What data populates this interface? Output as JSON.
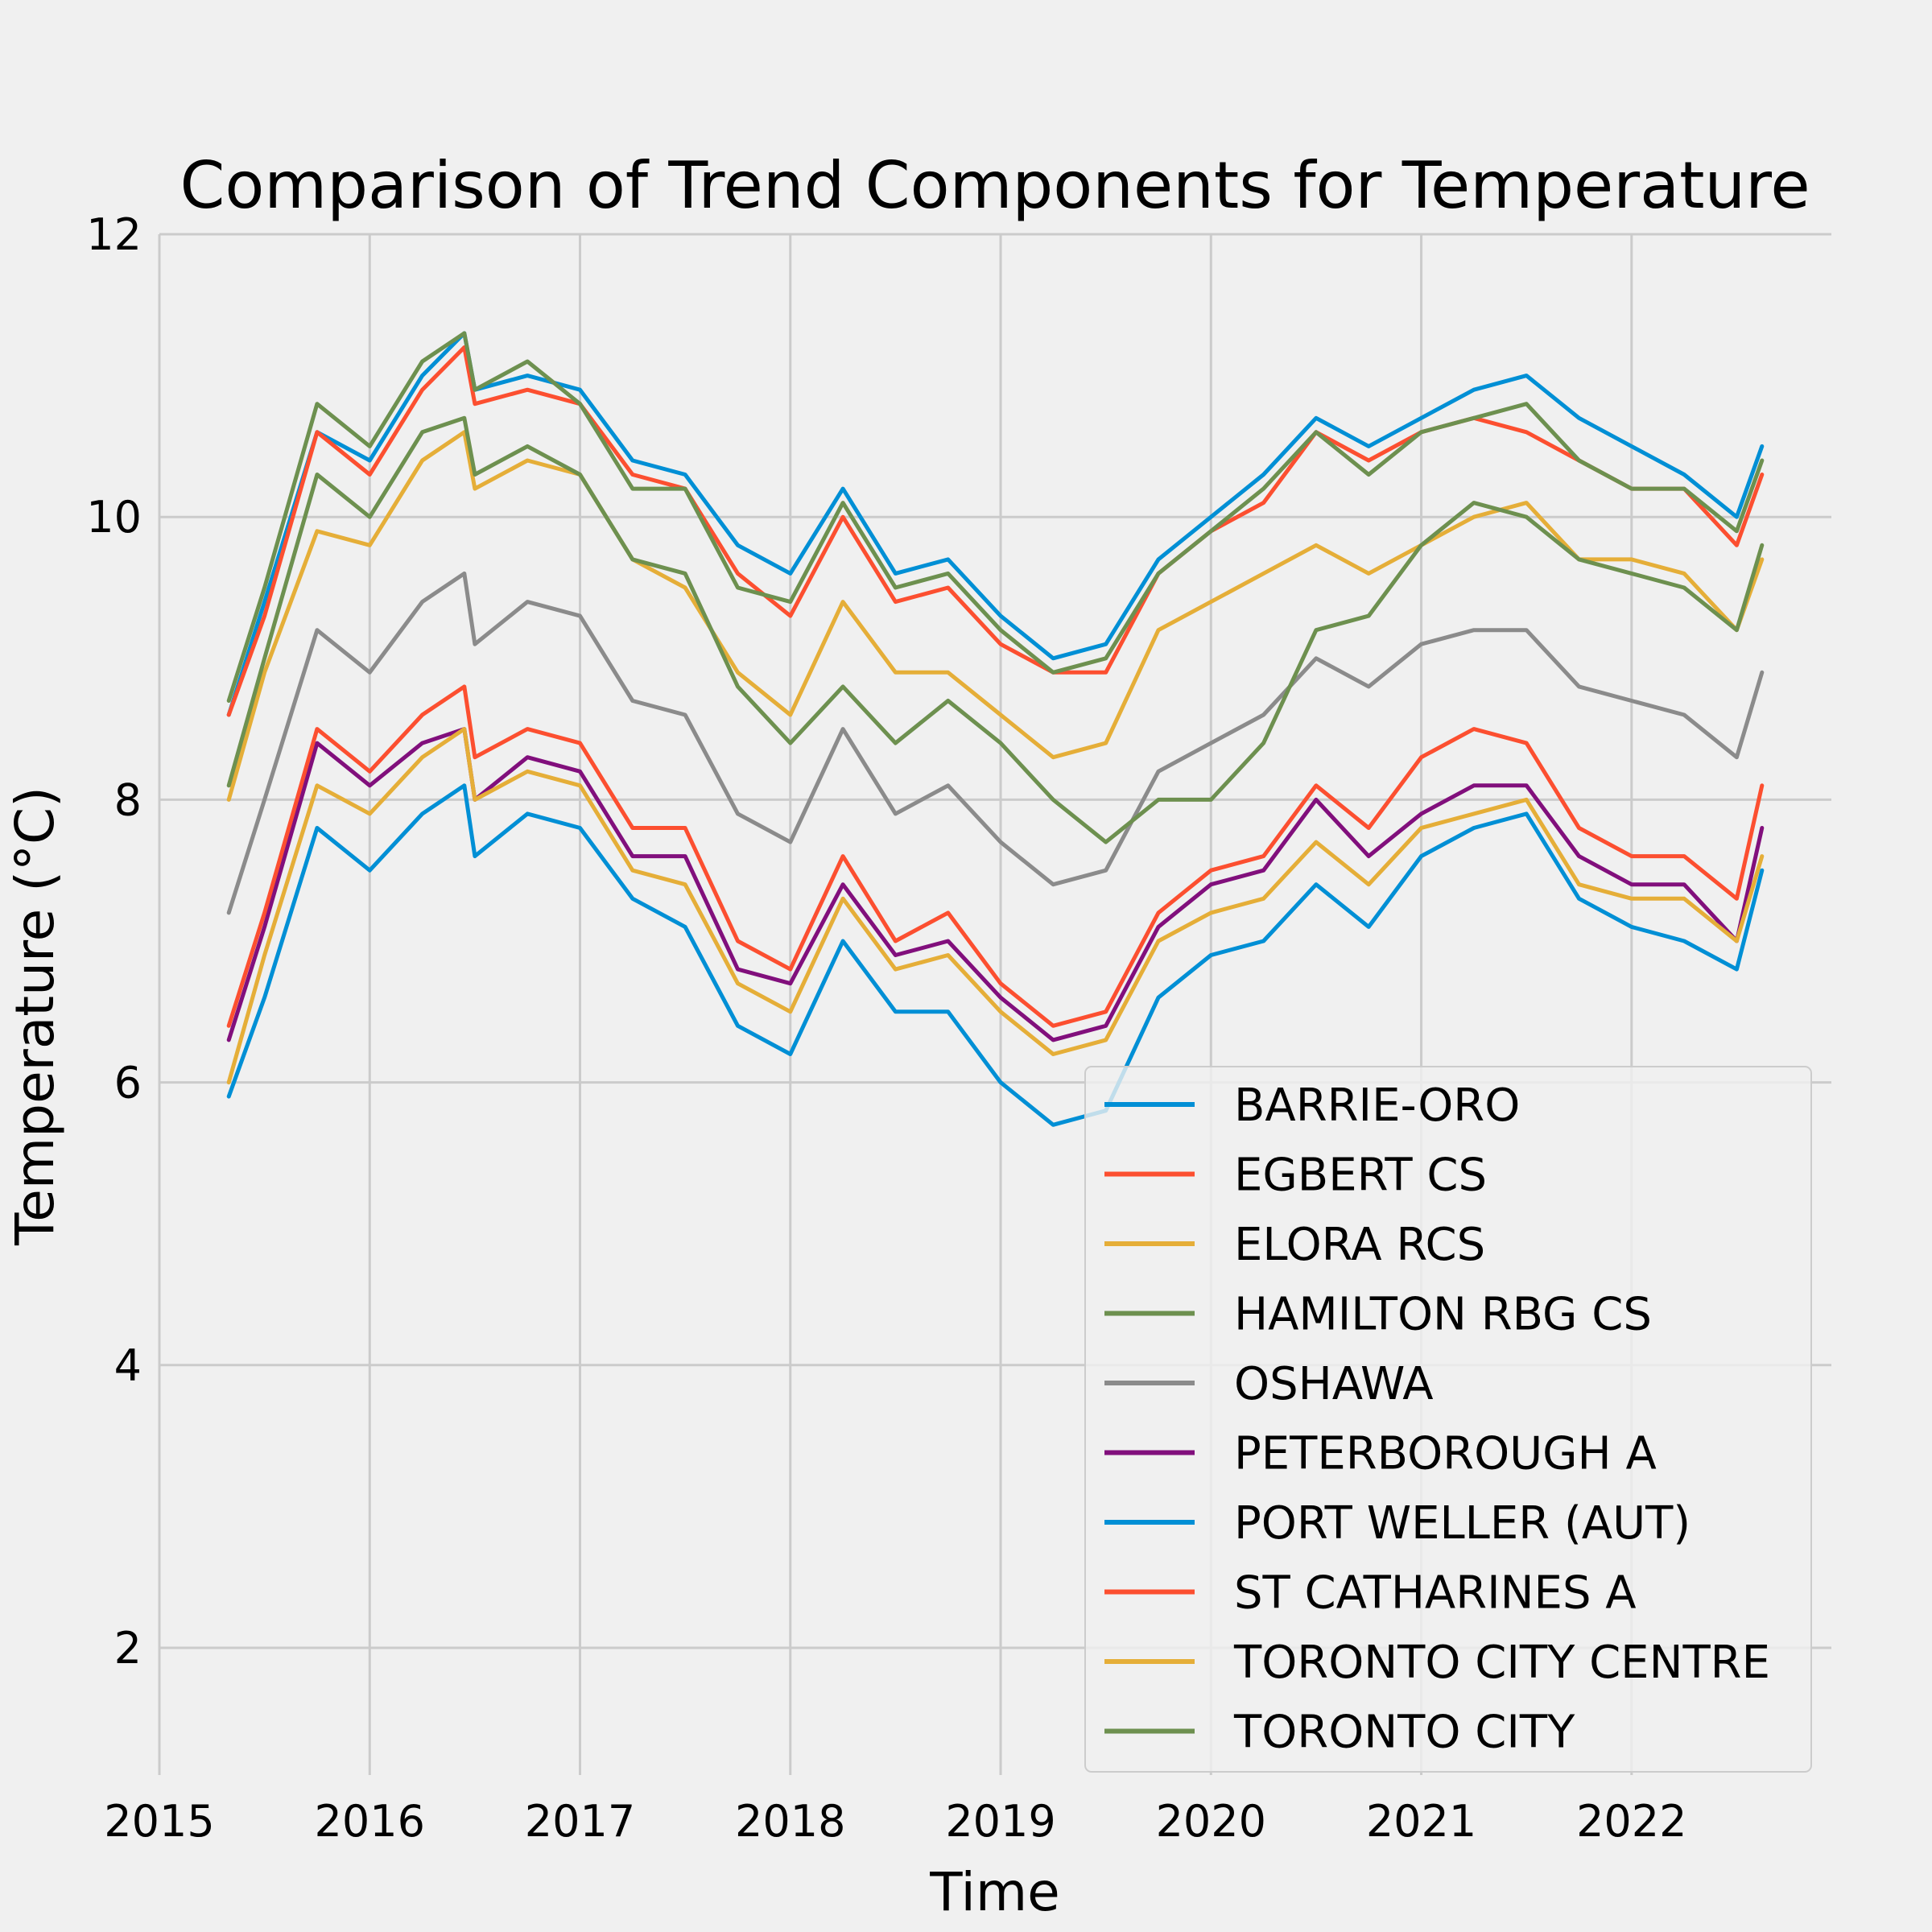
{
  "chart_data": {
    "type": "line",
    "title": "Comparison of Trend Components for Temperature",
    "xlabel": "Time",
    "ylabel": "Temperature (°C)",
    "xlim": [
      2015.0,
      2022.95
    ],
    "ylim": [
      1.1,
      12.0
    ],
    "xticks": [
      2015,
      2016,
      2017,
      2018,
      2019,
      2020,
      2021,
      2022
    ],
    "xtick_labels": [
      "2015",
      "2016",
      "2017",
      "2018",
      "2019",
      "2020",
      "2021",
      "2022"
    ],
    "yticks": [
      2,
      4,
      6,
      8,
      10,
      12
    ],
    "ytick_labels": [
      "2",
      "4",
      "6",
      "8",
      "10",
      "12"
    ],
    "grid": true,
    "legend_position": "bottom-right",
    "x": [
      2015.33,
      2015.5,
      2015.75,
      2016.0,
      2016.25,
      2016.45,
      2016.5,
      2016.75,
      2017.0,
      2017.25,
      2017.5,
      2017.75,
      2018.0,
      2018.25,
      2018.5,
      2018.75,
      2019.0,
      2019.25,
      2019.5,
      2019.75,
      2020.0,
      2020.25,
      2020.5,
      2020.75,
      2021.0,
      2021.25,
      2021.5,
      2021.75,
      2022.0,
      2022.25,
      2022.5,
      2022.62
    ],
    "series": [
      {
        "name": "BARRIE-ORO",
        "color": "#008fd5",
        "values": [
          8.6,
          9.4,
          10.6,
          10.4,
          11.0,
          11.3,
          10.9,
          11.0,
          10.9,
          10.4,
          10.3,
          9.8,
          9.6,
          10.2,
          9.6,
          9.7,
          9.3,
          9.0,
          9.1,
          9.7,
          10.0,
          10.3,
          10.7,
          10.5,
          10.7,
          10.9,
          11.0,
          10.7,
          10.5,
          10.3,
          10.0,
          10.5
        ]
      },
      {
        "name": "EGBERT CS",
        "color": "#fc4f30",
        "values": [
          8.6,
          9.3,
          10.6,
          10.3,
          10.9,
          11.2,
          10.8,
          10.9,
          10.8,
          10.3,
          10.2,
          9.6,
          9.3,
          10.0,
          9.4,
          9.5,
          9.1,
          8.9,
          8.9,
          9.6,
          9.9,
          10.1,
          10.6,
          10.4,
          10.6,
          10.7,
          10.6,
          10.4,
          10.2,
          10.2,
          9.8,
          10.3
        ]
      },
      {
        "name": "ELORA RCS",
        "color": "#e5ae38",
        "values": [
          8.0,
          8.9,
          9.9,
          9.8,
          10.4,
          10.6,
          10.2,
          10.4,
          10.3,
          9.7,
          9.5,
          8.9,
          8.6,
          9.4,
          8.9,
          8.9,
          8.6,
          8.3,
          8.4,
          9.2,
          9.4,
          9.6,
          9.8,
          9.6,
          9.8,
          10.0,
          10.1,
          9.7,
          9.7,
          9.6,
          9.2,
          9.7
        ]
      },
      {
        "name": "HAMILTON RBG CS",
        "color": "#6d904f",
        "values": [
          8.7,
          9.5,
          10.8,
          10.5,
          11.1,
          11.3,
          10.9,
          11.1,
          10.8,
          10.2,
          10.2,
          9.5,
          9.4,
          10.1,
          9.5,
          9.6,
          9.2,
          8.9,
          9.0,
          9.6,
          9.9,
          10.2,
          10.6,
          10.3,
          10.6,
          10.7,
          10.8,
          10.4,
          10.2,
          10.2,
          9.9,
          10.4
        ]
      },
      {
        "name": "OSHAWA",
        "color": "#8b8b8b",
        "values": [
          7.2,
          8.0,
          9.2,
          8.9,
          9.4,
          9.6,
          9.1,
          9.4,
          9.3,
          8.7,
          8.6,
          7.9,
          7.7,
          8.5,
          7.9,
          8.1,
          7.7,
          7.4,
          7.5,
          8.2,
          8.4,
          8.6,
          9.0,
          8.8,
          9.1,
          9.2,
          9.2,
          8.8,
          8.7,
          8.6,
          8.3,
          8.9
        ]
      },
      {
        "name": "PETERBOROUGH A",
        "color": "#810f7c",
        "values": [
          6.3,
          7.1,
          8.4,
          8.1,
          8.4,
          8.5,
          8.0,
          8.3,
          8.2,
          7.6,
          7.6,
          6.8,
          6.7,
          7.4,
          6.9,
          7.0,
          6.6,
          6.3,
          6.4,
          7.1,
          7.4,
          7.5,
          8.0,
          7.6,
          7.9,
          8.1,
          8.1,
          7.6,
          7.4,
          7.4,
          7.0,
          7.8
        ]
      },
      {
        "name": "PORT WELLER (AUT)",
        "color": "#008fd5",
        "values": [
          5.9,
          6.6,
          7.8,
          7.5,
          7.9,
          8.1,
          7.6,
          7.9,
          7.8,
          7.3,
          7.1,
          6.4,
          6.2,
          7.0,
          6.5,
          6.5,
          6.0,
          5.7,
          5.8,
          6.6,
          6.9,
          7.0,
          7.4,
          7.1,
          7.6,
          7.8,
          7.9,
          7.3,
          7.1,
          7.0,
          6.8,
          7.5
        ]
      },
      {
        "name": "ST CATHARINES A",
        "color": "#fc4f30",
        "values": [
          6.4,
          7.2,
          8.5,
          8.2,
          8.6,
          8.8,
          8.3,
          8.5,
          8.4,
          7.8,
          7.8,
          7.0,
          6.8,
          7.6,
          7.0,
          7.2,
          6.7,
          6.4,
          6.5,
          7.2,
          7.5,
          7.6,
          8.1,
          7.8,
          8.3,
          8.5,
          8.4,
          7.8,
          7.6,
          7.6,
          7.3,
          8.1
        ]
      },
      {
        "name": "TORONTO CITY CENTRE",
        "color": "#e5ae38",
        "values": [
          6.0,
          6.9,
          8.1,
          7.9,
          8.3,
          8.5,
          8.0,
          8.2,
          8.1,
          7.5,
          7.4,
          6.7,
          6.5,
          7.3,
          6.8,
          6.9,
          6.5,
          6.2,
          6.3,
          7.0,
          7.2,
          7.3,
          7.7,
          7.4,
          7.8,
          7.9,
          8.0,
          7.4,
          7.3,
          7.3,
          7.0,
          7.6
        ]
      },
      {
        "name": "TORONTO CITY",
        "color": "#6d904f",
        "values": [
          8.1,
          9.0,
          10.3,
          10.0,
          10.6,
          10.7,
          10.3,
          10.5,
          10.3,
          9.7,
          9.6,
          8.8,
          8.4,
          8.8,
          8.4,
          8.7,
          8.4,
          8.0,
          7.7,
          8.0,
          8.0,
          8.4,
          9.2,
          9.3,
          9.8,
          10.1,
          10.0,
          9.7,
          9.6,
          9.5,
          9.2,
          9.8
        ]
      }
    ]
  }
}
